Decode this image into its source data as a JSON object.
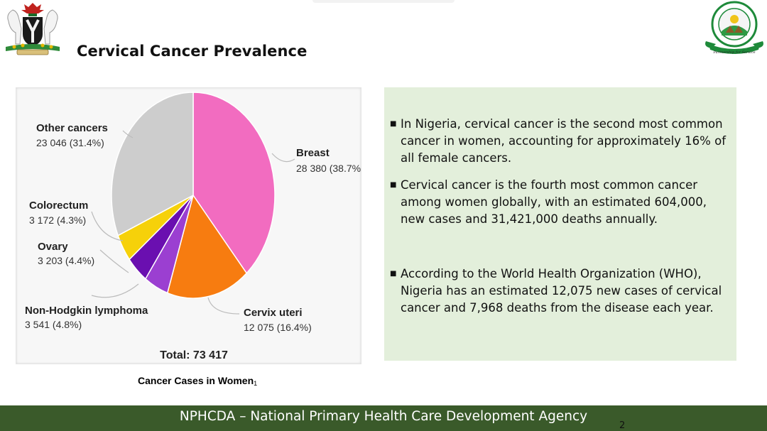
{
  "slide": {
    "title": "Cervical Cancer Prevalence",
    "caption": "Cancer Cases in Women",
    "caption_ref": "1",
    "footer": "NPHCDA – National Primary Health Care Development Agency",
    "page_number": "2"
  },
  "logos": {
    "left": "nigeria-coat-of-arms",
    "right": "nphcda-seal",
    "right_motto": "Partnership for Service"
  },
  "chart_data": {
    "type": "pie",
    "total_label": "Total: 73 417",
    "slices": [
      {
        "name": "Breast",
        "value": 28380,
        "label": "28 380 (38.7%)",
        "color": "#f26cc0"
      },
      {
        "name": "Cervix uteri",
        "value": 12075,
        "label": "12 075 (16.4%)",
        "color": "#f77c10"
      },
      {
        "name": "Non-Hodgkin lymphoma",
        "value": 3541,
        "label": "3 541 (4.8%)",
        "color": "#9b3fd1"
      },
      {
        "name": "Ovary",
        "value": 3203,
        "label": "3 203 (4.4%)",
        "color": "#6a0fb0"
      },
      {
        "name": "Colorectum",
        "value": 3172,
        "label": "3 172 (4.3%)",
        "color": "#f6d10a"
      },
      {
        "name": "Other cancers",
        "value": 23046,
        "label": "23 046 (31.4%)",
        "color": "#cdcdcd"
      }
    ]
  },
  "bullets": [
    "In Nigeria, cervical cancer is the second most common cancer in women, accounting for approximately 16% of all female cancers.",
    "Cervical cancer is the fourth most common cancer among women globally, with an estimated 604,000, new cases and 31,421,000 deaths annually.",
    "According to the World Health Organization (WHO), Nigeria has an estimated 12,075 new cases of cervical cancer and 7,968 deaths from the disease each year."
  ],
  "colors": {
    "panel_bg": "#e3efdb",
    "footer_bg": "#3a5a2a"
  }
}
